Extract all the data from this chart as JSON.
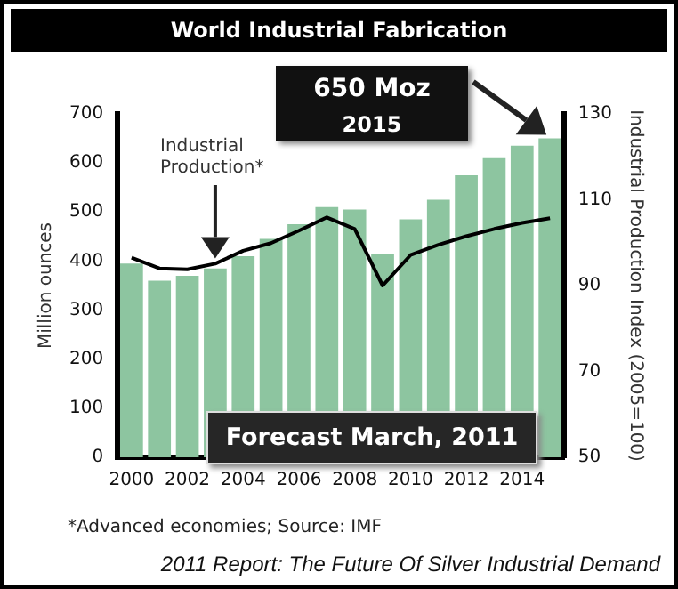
{
  "chart_data": {
    "type": "bar",
    "title": "World Industrial Fabrication",
    "categories": [
      "2000",
      null,
      "2002",
      null,
      "2004",
      null,
      "2006",
      null,
      "2008",
      null,
      "2010",
      null,
      "2012",
      null,
      "2014",
      null
    ],
    "series": [
      {
        "color": "#8dc5a0",
        "values": [
          395,
          360,
          370,
          385,
          410,
          445,
          475,
          510,
          505,
          415,
          485,
          525,
          575,
          610,
          635,
          650
        ]
      },
      {
        "type": "line",
        "name": "Industrial Production*",
        "axis": "y2",
        "color": "#000000",
        "values": [
          96.5,
          94.0,
          93.8,
          95.1,
          98.1,
          99.9,
          102.8,
          105.9,
          103.2,
          90.0,
          97.1,
          99.5,
          101.5,
          103.2,
          104.6,
          105.7
        ]
      }
    ],
    "ylabel": "Million ounces",
    "y2label": "Industrial Production Index (2005=100)",
    "ylim": [
      0,
      700
    ],
    "yticks": [
      0,
      100,
      200,
      300,
      400,
      500,
      600,
      700
    ],
    "y2lim": [
      50,
      130
    ],
    "y2ticks": [
      50,
      70,
      90,
      110,
      130
    ],
    "marker": "none",
    "grid": false,
    "legend": false,
    "annotations": [
      "650 Moz",
      "2015",
      "Forecast March, 2011",
      "*Advanced economies; Source: IMF",
      "2011 Report: The Future Of Silver Industrial Demand"
    ]
  }
}
